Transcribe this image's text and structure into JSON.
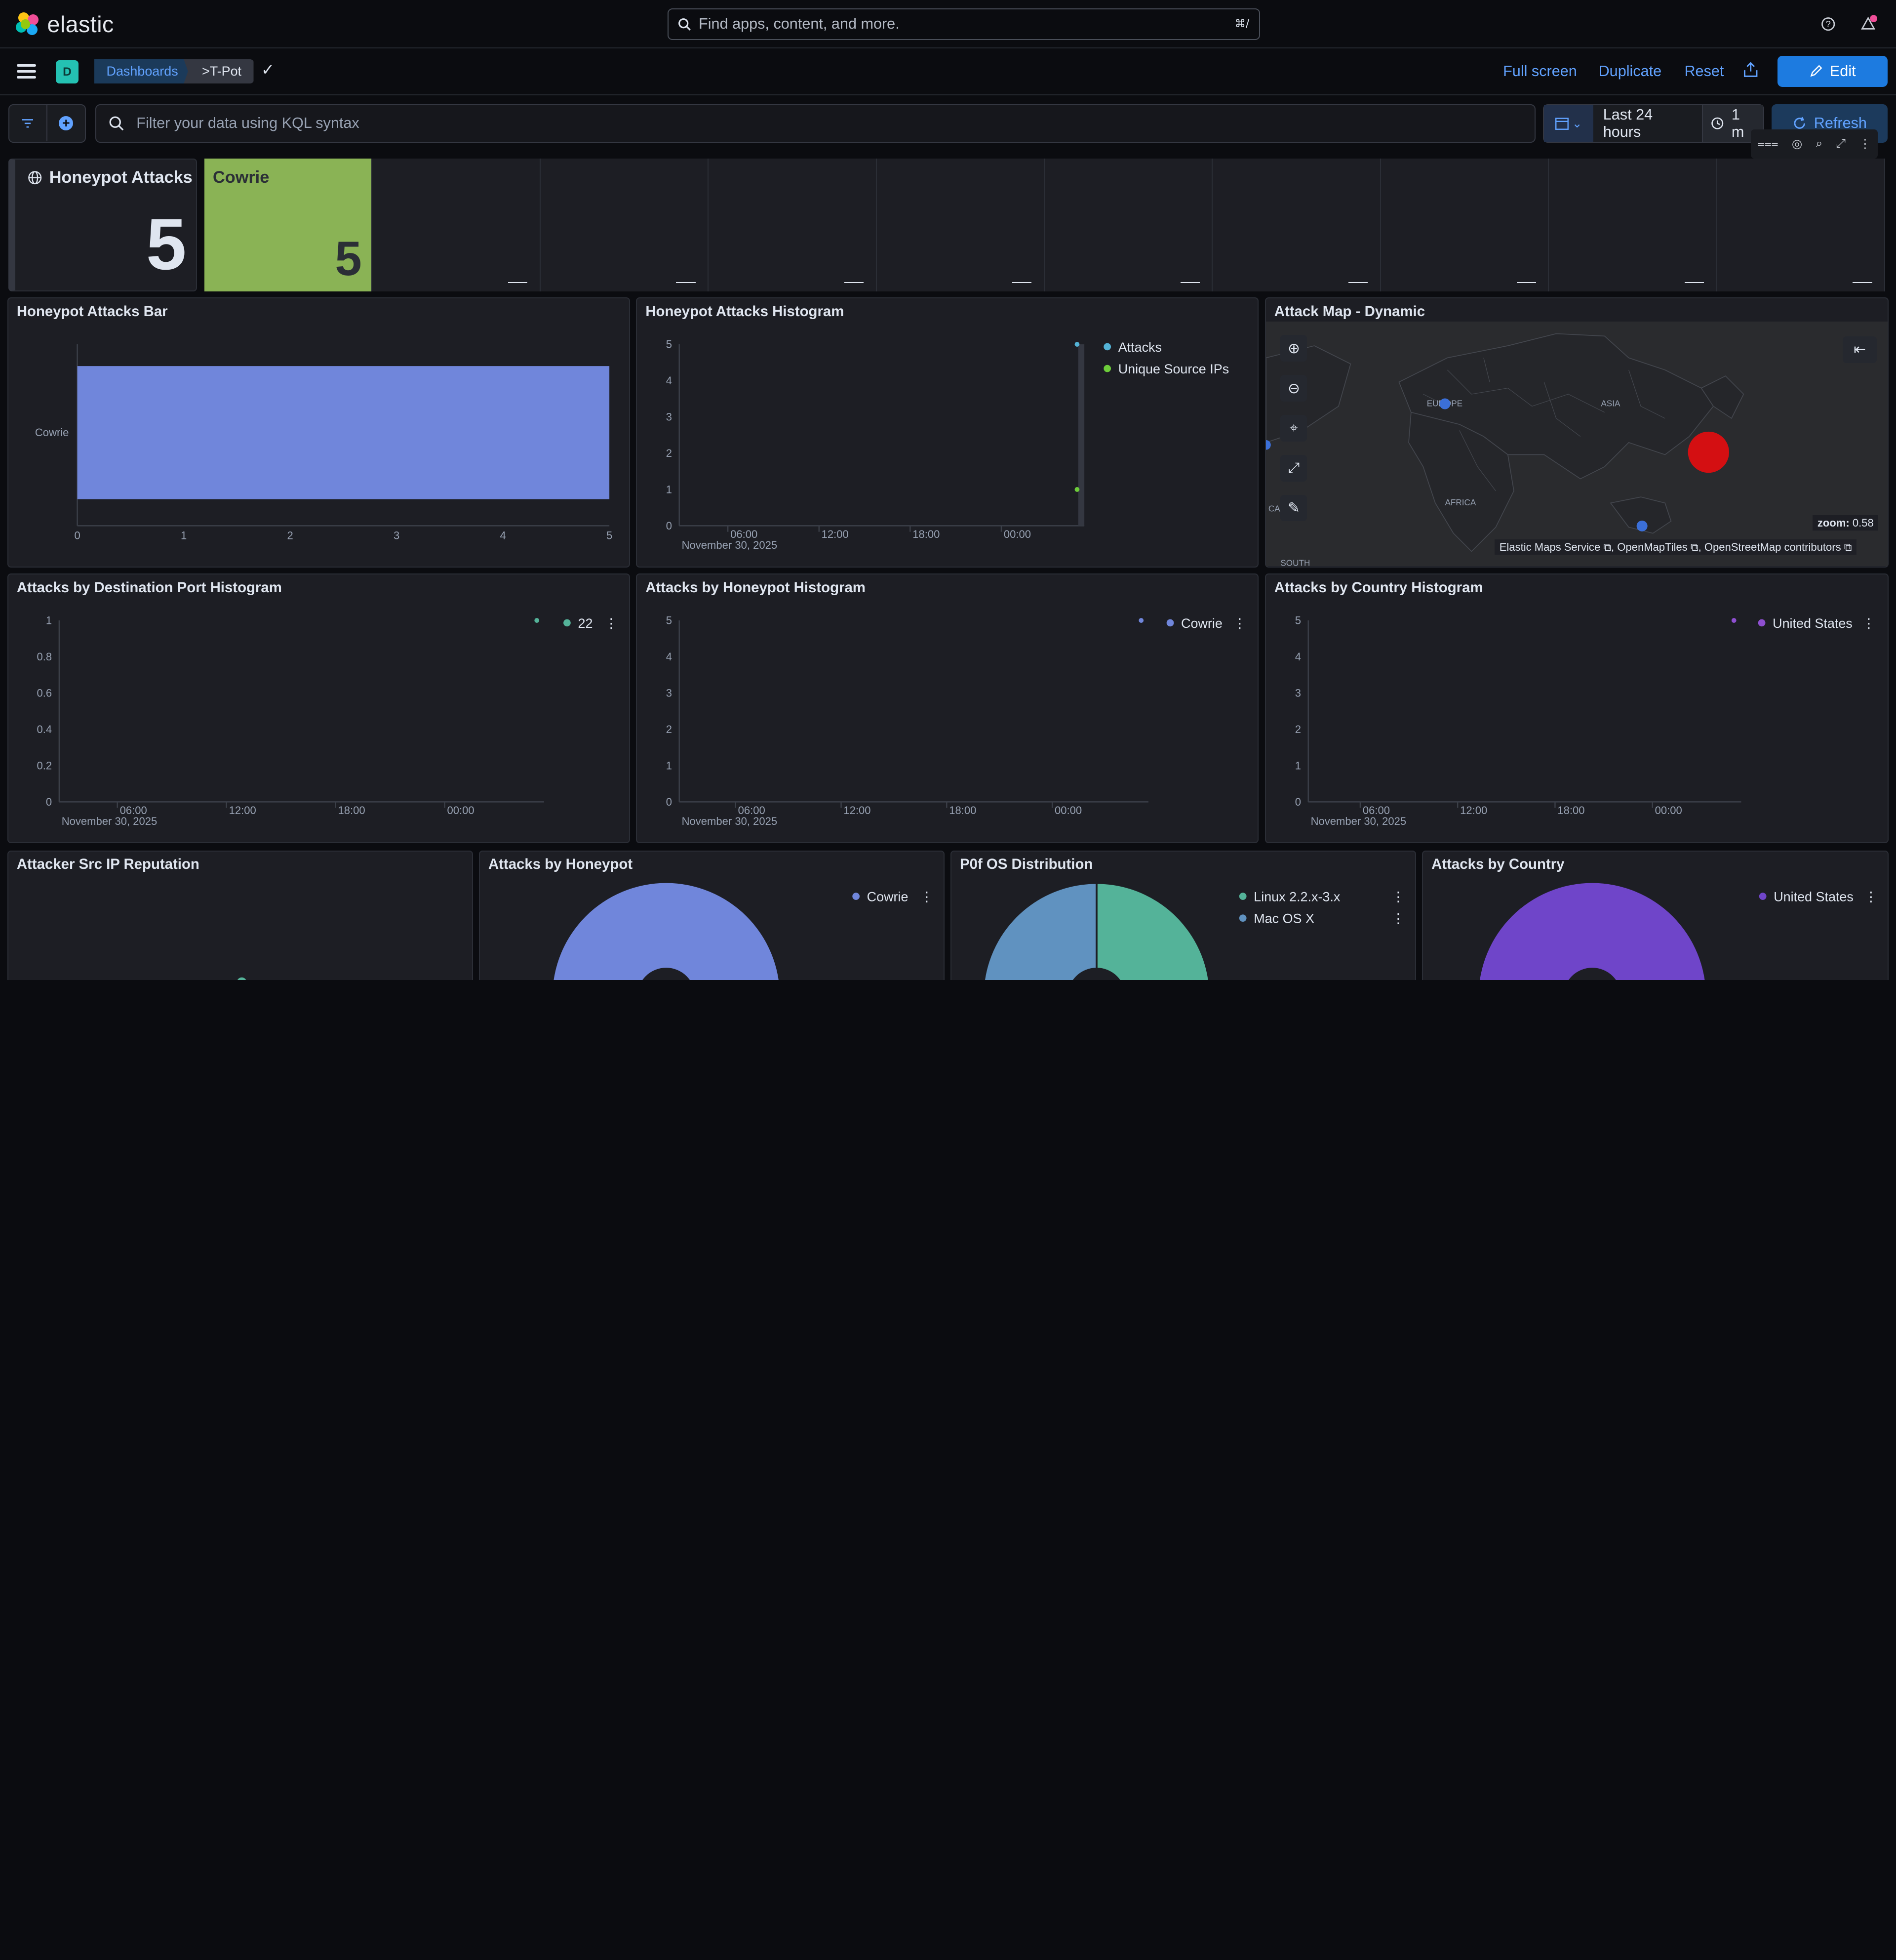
{
  "topbar": {
    "logo_text": "elastic",
    "search_placeholder": "Find apps, content, and more.",
    "search_shortcut": "⌘/"
  },
  "breadcrumbs": {
    "space_avatar": "D",
    "items": [
      "Dashboards",
      ">T-Pot"
    ]
  },
  "header_actions": {
    "full_screen": "Full screen",
    "duplicate": "Duplicate",
    "reset": "Reset",
    "edit": "Edit"
  },
  "query": {
    "kql_placeholder": "Filter your data using KQL syntax",
    "time_range": "Last 24 hours",
    "refresh_interval": "1 m",
    "refresh_label": "Refresh"
  },
  "metrics": {
    "total_title": "Honeypot Attacks",
    "total_value": "5",
    "tiles": [
      {
        "name": "Cowrie",
        "value": "5",
        "color": "#8ab355"
      },
      {
        "name": "",
        "value": "—"
      },
      {
        "name": "",
        "value": "—"
      },
      {
        "name": "",
        "value": "—"
      },
      {
        "name": "",
        "value": "—"
      },
      {
        "name": "",
        "value": "—"
      },
      {
        "name": "",
        "value": "—"
      },
      {
        "name": "",
        "value": "—"
      },
      {
        "name": "",
        "value": "—"
      },
      {
        "name": "",
        "value": "—"
      }
    ]
  },
  "panels": {
    "bar_title": "Honeypot Attacks Bar",
    "histogram_title": "Honeypot Attacks Histogram",
    "map_title": "Attack Map - Dynamic",
    "port_hist_title": "Attacks by Destination Port Histogram",
    "honeypot_hist_title": "Attacks by Honeypot Histogram",
    "country_hist_title": "Attacks by Country Histogram",
    "reputation_title": "Attacker Src IP Reputation",
    "honeypot_pie_title": "Attacks by Honeypot",
    "os_pie_title": "P0f OS Distribution",
    "country_pie_title": "Attacks by Country"
  },
  "map": {
    "labels": [
      "EUROPE",
      "ASIA",
      "AFRICA",
      "SOUTH"
    ],
    "zoom_label": "zoom:",
    "zoom_value": "0.58",
    "attribution": [
      "Elastic Maps Service",
      "OpenMapTiles",
      "OpenStreetMap contributors"
    ],
    "partial_label": "CA"
  },
  "chart_data": [
    {
      "id": "honeypot-attacks-bar",
      "type": "bar",
      "orientation": "horizontal",
      "categories": [
        "Cowrie"
      ],
      "values": [
        5
      ],
      "xticks": [
        "0",
        "1",
        "2",
        "3",
        "4",
        "5"
      ],
      "xlim": [
        0,
        5
      ],
      "colors": [
        "#7086db"
      ]
    },
    {
      "id": "honeypot-attacks-histogram",
      "type": "line",
      "series": [
        {
          "name": "Attacks",
          "values": [
            5
          ],
          "color": "#54b3d6"
        },
        {
          "name": "Unique Source IPs",
          "values": [
            1
          ],
          "color": "#6dcc3a"
        }
      ],
      "yticks": [
        "0",
        "1",
        "2",
        "3",
        "4",
        "5"
      ],
      "xticks": [
        "06:00",
        "12:00",
        "18:00",
        "00:00"
      ],
      "xsub": "November 30, 2025"
    },
    {
      "id": "destination-port-histogram",
      "type": "line",
      "series": [
        {
          "name": "22",
          "values": [
            1
          ],
          "color": "#54b399"
        }
      ],
      "yticks": [
        "0",
        "0.2",
        "0.4",
        "0.6",
        "0.8",
        "1"
      ],
      "xticks": [
        "06:00",
        "12:00",
        "18:00",
        "00:00"
      ],
      "xsub": "November 30, 2025"
    },
    {
      "id": "honeypot-histogram",
      "type": "line",
      "series": [
        {
          "name": "Cowrie",
          "values": [
            5
          ],
          "color": "#7086db"
        }
      ],
      "yticks": [
        "0",
        "1",
        "2",
        "3",
        "4",
        "5"
      ],
      "xticks": [
        "06:00",
        "12:00",
        "18:00",
        "00:00"
      ],
      "xsub": "November 30, 2025"
    },
    {
      "id": "country-histogram",
      "type": "line",
      "series": [
        {
          "name": "United States",
          "values": [
            5
          ],
          "color": "#8e4fd0"
        }
      ],
      "yticks": [
        "0",
        "1",
        "2",
        "3",
        "4",
        "5"
      ],
      "xticks": [
        "06:00",
        "12:00",
        "18:00",
        "00:00"
      ],
      "xsub": "November 30, 2025"
    },
    {
      "id": "honeypot-pie",
      "type": "pie",
      "labels": [
        "Cowrie"
      ],
      "values": [
        5
      ],
      "colors": [
        "#7086db"
      ]
    },
    {
      "id": "os-pie",
      "type": "pie",
      "labels": [
        "Linux 2.2.x-3.x",
        "Mac OS X"
      ],
      "values": [
        3,
        2
      ],
      "colors": [
        "#54b399",
        "#6092c0"
      ]
    },
    {
      "id": "country-pie",
      "type": "pie",
      "labels": [
        "United States"
      ],
      "values": [
        5
      ],
      "colors": [
        "#6f45c9"
      ]
    }
  ]
}
